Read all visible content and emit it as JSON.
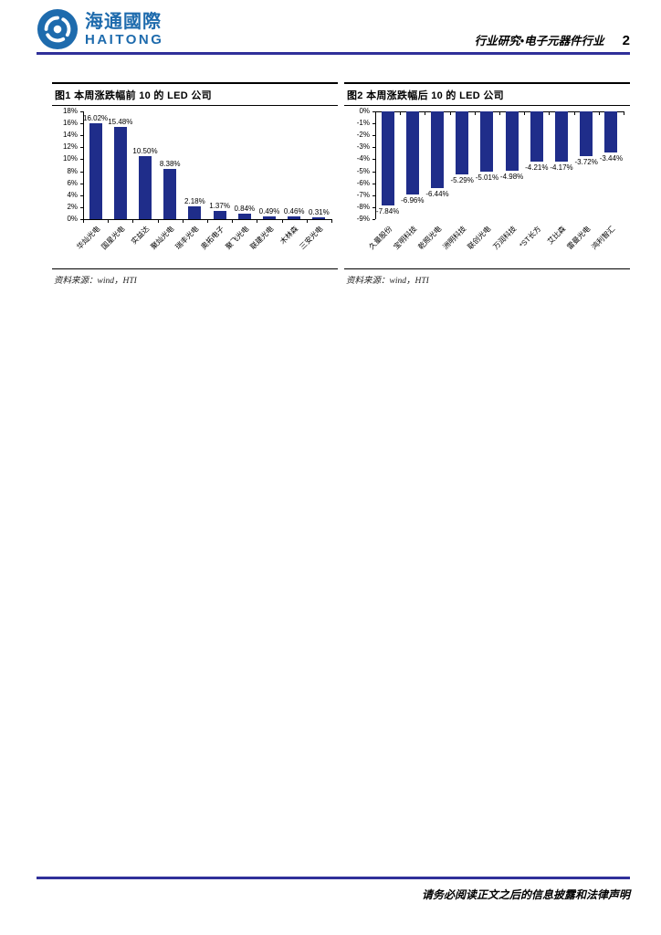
{
  "header": {
    "logo_cn": "海通國際",
    "logo_en": "HAITONG",
    "doc_type": "行业研究•电子元器件行业",
    "page": "2"
  },
  "figures": [
    {
      "title": "图1  本周涨跌幅前 10 的 LED 公司",
      "source_label": "资料来源：wind，HTI"
    },
    {
      "title": "图2  本周涨跌幅后 10 的 LED 公司",
      "source_label": "资料来源：wind，HTI"
    }
  ],
  "chart_data": [
    {
      "type": "bar",
      "title": "本周涨跌幅前10的LED公司",
      "categories": [
        "华灿光电",
        "国星光电",
        "实益达",
        "聚灿光电",
        "瑞丰光电",
        "奥拓电子",
        "聚飞光电",
        "联建光电",
        "木林森",
        "三安光电"
      ],
      "values": [
        16.02,
        15.48,
        10.5,
        8.38,
        2.18,
        1.37,
        0.84,
        0.49,
        0.46,
        0.31
      ],
      "labels": [
        "16.02%",
        "15.48%",
        "10.50%",
        "8.38%",
        "2.18%",
        "1.37%",
        "0.84%",
        "0.49%",
        "0.46%",
        "0.31%"
      ],
      "ylim": [
        0,
        18
      ],
      "ytick_step": 2,
      "yticks": [
        "18%",
        "16%",
        "14%",
        "12%",
        "10%",
        "8%",
        "6%",
        "4%",
        "2%",
        "0%"
      ],
      "bar_color": "#1F2D8A",
      "grid": false,
      "legend": false
    },
    {
      "type": "bar",
      "title": "本周涨跌幅后10的LED公司",
      "categories": [
        "久量股份",
        "宝明科技",
        "乾照光电",
        "洲明科技",
        "联创光电",
        "万润科技",
        "*ST长方",
        "艾比森",
        "雷曼光电",
        "鸿利智汇"
      ],
      "values": [
        -7.84,
        -6.96,
        -6.44,
        -5.29,
        -5.01,
        -4.98,
        -4.21,
        -4.17,
        -3.72,
        -3.44
      ],
      "labels": [
        "-7.84%",
        "-6.96%",
        "-6.44%",
        "-5.29%",
        "-5.01%",
        "-4.98%",
        "-4.21%",
        "-4.17%",
        "-3.72%",
        "-3.44%"
      ],
      "ylim": [
        -9,
        0
      ],
      "ytick_step": 1,
      "yticks": [
        "0%",
        "-1%",
        "-2%",
        "-3%",
        "-4%",
        "-5%",
        "-6%",
        "-7%",
        "-8%",
        "-9%"
      ],
      "bar_color": "#1F2D8A",
      "grid": false,
      "legend": false
    }
  ],
  "footer": {
    "disclaimer": "请务必阅读正文之后的信息披露和法律声明"
  },
  "colors": {
    "bar": "#1F2D8A",
    "rule": "#30309A",
    "logo_blue": "#1E6BAD",
    "axis": "#000000"
  }
}
